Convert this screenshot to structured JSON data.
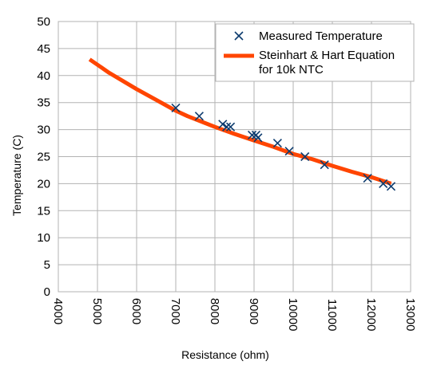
{
  "chart_data": {
    "type": "scatter",
    "xlabel": "Resistance (ohm)",
    "ylabel": "Temperature (C)",
    "xlim": [
      4000,
      13000
    ],
    "ylim": [
      0,
      50
    ],
    "xticks": [
      4000,
      5000,
      6000,
      7000,
      8000,
      9000,
      10000,
      11000,
      12000,
      13000
    ],
    "yticks": [
      0,
      5,
      10,
      15,
      20,
      25,
      30,
      35,
      40,
      45,
      50
    ],
    "grid": true,
    "legend_position": "top-right",
    "series": [
      {
        "name": "Measured Temperature",
        "kind": "scatter",
        "marker": "x",
        "color": "#0d3b6e",
        "points": [
          [
            7000,
            34
          ],
          [
            7600,
            32.5
          ],
          [
            8200,
            31
          ],
          [
            8300,
            30.5
          ],
          [
            8400,
            30.5
          ],
          [
            8950,
            29
          ],
          [
            9050,
            29
          ],
          [
            9100,
            28.5
          ],
          [
            9600,
            27.5
          ],
          [
            9900,
            26
          ],
          [
            10300,
            25
          ],
          [
            10800,
            23.5
          ],
          [
            11900,
            21
          ],
          [
            12300,
            20
          ],
          [
            12500,
            19.5
          ]
        ]
      },
      {
        "name": "Steinhart & Hart Equation\nfor 10k NTC",
        "kind": "line",
        "color": "#ff4500",
        "points": [
          [
            4800,
            43
          ],
          [
            5300,
            40.5
          ],
          [
            6000,
            37.5
          ],
          [
            6500,
            35.5
          ],
          [
            7000,
            33.5
          ],
          [
            7300,
            32.5
          ],
          [
            8000,
            30.5
          ],
          [
            8500,
            29.2
          ],
          [
            9000,
            28
          ],
          [
            9500,
            26.8
          ],
          [
            10000,
            25.5
          ],
          [
            10500,
            24.5
          ],
          [
            11000,
            23.3
          ],
          [
            11500,
            22.2
          ],
          [
            12000,
            21.2
          ],
          [
            12500,
            20
          ]
        ]
      }
    ]
  }
}
